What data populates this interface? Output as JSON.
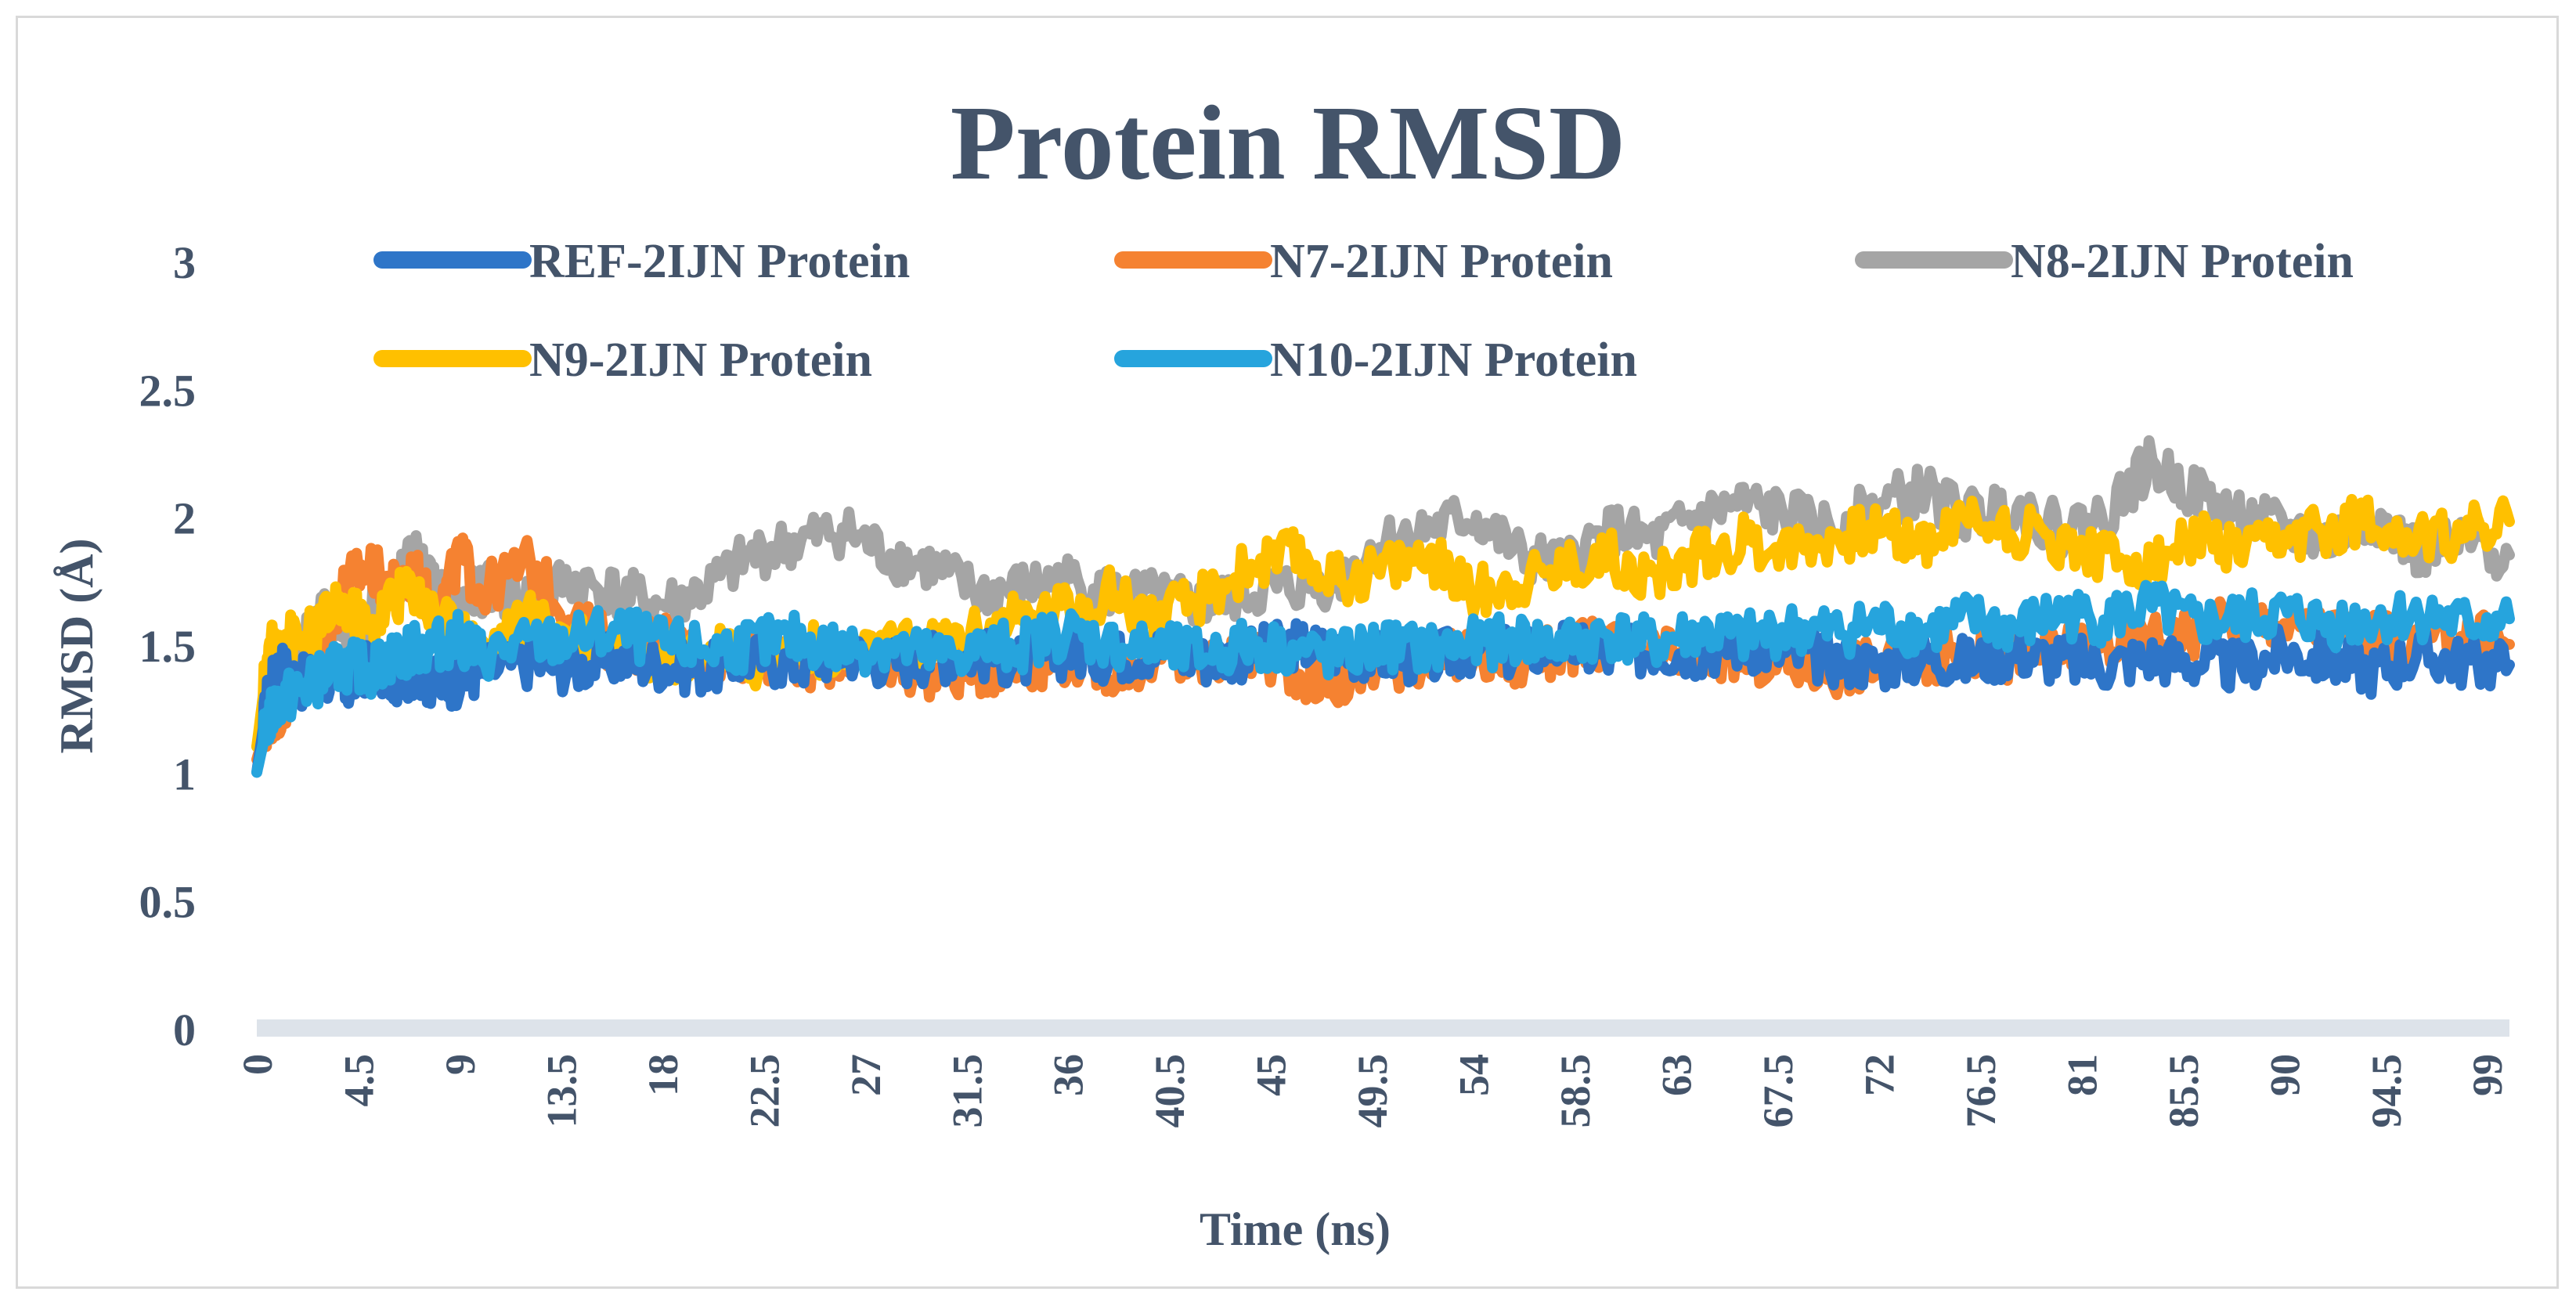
{
  "chart_data": {
    "type": "line",
    "title": "Protein RMSD",
    "xlabel": "Time (ns)",
    "ylabel": "RMSD (Å)",
    "ylim": [
      0,
      3
    ],
    "xlim": [
      0,
      100
    ],
    "y_ticks": [
      "0",
      "0.5",
      "1",
      "1.5",
      "2",
      "2.5",
      "3"
    ],
    "x_ticks": [
      "0",
      "4.5",
      "9",
      "13.5",
      "18",
      "22.5",
      "27",
      "31.5",
      "36",
      "40.5",
      "45",
      "49.5",
      "54",
      "58.5",
      "63",
      "67.5",
      "72",
      "76.5",
      "81",
      "85.5",
      "90",
      "94.5",
      "99"
    ],
    "legend_position": "top",
    "series": [
      {
        "name": "REF-2IJN Protein",
        "color": "#2e75c8",
        "x": [
          0,
          0.5,
          1,
          2,
          3,
          4,
          5,
          6,
          7,
          8,
          9,
          10,
          12,
          14,
          16,
          18,
          20,
          22,
          24,
          26,
          28,
          30,
          32,
          34,
          36,
          38,
          40,
          42,
          44,
          46,
          48,
          50,
          52,
          54,
          56,
          58,
          60,
          62,
          64,
          66,
          68,
          70,
          72,
          74,
          76,
          78,
          80,
          82,
          84,
          86,
          88,
          90,
          92,
          94,
          96,
          98,
          100
        ],
        "values": [
          1.0,
          1.3,
          1.42,
          1.35,
          1.38,
          1.33,
          1.42,
          1.36,
          1.4,
          1.34,
          1.36,
          1.4,
          1.43,
          1.41,
          1.44,
          1.42,
          1.4,
          1.45,
          1.42,
          1.47,
          1.43,
          1.45,
          1.46,
          1.43,
          1.47,
          1.45,
          1.48,
          1.44,
          1.46,
          1.5,
          1.47,
          1.45,
          1.44,
          1.48,
          1.46,
          1.5,
          1.45,
          1.48,
          1.47,
          1.5,
          1.46,
          1.44,
          1.42,
          1.45,
          1.43,
          1.47,
          1.44,
          1.42,
          1.45,
          1.43,
          1.41,
          1.47,
          1.44,
          1.4,
          1.46,
          1.43,
          1.42
        ]
      },
      {
        "name": "N7-2IJN Protein",
        "color": "#f58231",
        "x": [
          0,
          0.5,
          1,
          2,
          3,
          4,
          5,
          6,
          7,
          8,
          9,
          10,
          12,
          14,
          16,
          18,
          20,
          22,
          24,
          26,
          28,
          30,
          32,
          34,
          36,
          38,
          40,
          42,
          44,
          46,
          48,
          50,
          52,
          54,
          56,
          58,
          60,
          62,
          64,
          66,
          68,
          70,
          72,
          74,
          76,
          78,
          80,
          82,
          84,
          86,
          88,
          90,
          92,
          94,
          96,
          98,
          100
        ],
        "values": [
          1.05,
          1.2,
          1.25,
          1.35,
          1.5,
          1.75,
          1.8,
          1.72,
          1.78,
          1.6,
          1.85,
          1.7,
          1.82,
          1.6,
          1.48,
          1.52,
          1.44,
          1.47,
          1.4,
          1.45,
          1.43,
          1.38,
          1.4,
          1.42,
          1.45,
          1.4,
          1.44,
          1.42,
          1.46,
          1.4,
          1.34,
          1.42,
          1.44,
          1.46,
          1.42,
          1.48,
          1.5,
          1.45,
          1.47,
          1.44,
          1.42,
          1.4,
          1.43,
          1.45,
          1.47,
          1.44,
          1.48,
          1.5,
          1.52,
          1.55,
          1.6,
          1.58,
          1.55,
          1.52,
          1.5,
          1.54,
          1.5
        ]
      },
      {
        "name": "N8-2IJN Protein",
        "color": "#a5a5a5",
        "x": [
          0,
          0.5,
          1,
          2,
          3,
          4,
          5,
          6,
          7,
          8,
          9,
          10,
          12,
          14,
          16,
          18,
          20,
          22,
          24,
          26,
          28,
          30,
          32,
          34,
          36,
          38,
          40,
          42,
          44,
          46,
          48,
          50,
          52,
          54,
          56,
          58,
          60,
          62,
          64,
          66,
          68,
          70,
          72,
          74,
          76,
          78,
          80,
          82,
          84,
          86,
          88,
          90,
          92,
          94,
          96,
          98,
          100
        ],
        "values": [
          1.1,
          1.35,
          1.45,
          1.5,
          1.6,
          1.55,
          1.62,
          1.7,
          1.85,
          1.7,
          1.65,
          1.72,
          1.68,
          1.75,
          1.7,
          1.65,
          1.72,
          1.85,
          1.9,
          1.95,
          1.85,
          1.8,
          1.7,
          1.72,
          1.75,
          1.7,
          1.68,
          1.65,
          1.7,
          1.72,
          1.75,
          1.9,
          1.95,
          2.0,
          1.85,
          1.8,
          1.95,
          1.9,
          2.0,
          2.05,
          2.0,
          1.95,
          2.05,
          2.1,
          2.0,
          2.05,
          1.95,
          2.0,
          2.2,
          2.1,
          2.0,
          1.95,
          1.9,
          2.0,
          1.85,
          1.9,
          1.85
        ]
      },
      {
        "name": "N9-2IJN Protein",
        "color": "#ffc000",
        "x": [
          0,
          0.5,
          1,
          2,
          3,
          4,
          5,
          6,
          7,
          8,
          9,
          10,
          12,
          14,
          16,
          18,
          20,
          22,
          24,
          26,
          28,
          30,
          32,
          34,
          36,
          38,
          40,
          42,
          44,
          46,
          48,
          50,
          52,
          54,
          56,
          58,
          60,
          62,
          64,
          66,
          68,
          70,
          72,
          74,
          76,
          78,
          80,
          82,
          84,
          86,
          88,
          90,
          92,
          94,
          96,
          98,
          100
        ],
        "values": [
          1.1,
          1.45,
          1.55,
          1.5,
          1.6,
          1.65,
          1.55,
          1.68,
          1.72,
          1.6,
          1.55,
          1.48,
          1.6,
          1.55,
          1.5,
          1.45,
          1.48,
          1.42,
          1.5,
          1.45,
          1.48,
          1.5,
          1.55,
          1.6,
          1.65,
          1.7,
          1.6,
          1.68,
          1.8,
          1.85,
          1.75,
          1.8,
          1.85,
          1.7,
          1.75,
          1.8,
          1.85,
          1.75,
          1.85,
          1.9,
          1.88,
          1.92,
          1.95,
          1.9,
          2.0,
          1.95,
          1.9,
          1.85,
          1.8,
          1.92,
          1.85,
          1.9,
          1.95,
          2.0,
          1.9,
          1.95,
          1.98
        ]
      },
      {
        "name": "N10-2IJN Protein",
        "color": "#26a4dd",
        "x": [
          0,
          0.5,
          1,
          2,
          3,
          4,
          5,
          6,
          7,
          8,
          9,
          10,
          12,
          14,
          16,
          18,
          20,
          22,
          24,
          26,
          28,
          30,
          32,
          34,
          36,
          38,
          40,
          42,
          44,
          46,
          48,
          50,
          52,
          54,
          56,
          58,
          60,
          62,
          64,
          66,
          68,
          70,
          72,
          74,
          76,
          78,
          80,
          82,
          84,
          86,
          88,
          90,
          92,
          94,
          96,
          98,
          100
        ],
        "values": [
          1.0,
          1.2,
          1.28,
          1.32,
          1.38,
          1.42,
          1.4,
          1.45,
          1.48,
          1.5,
          1.52,
          1.46,
          1.5,
          1.52,
          1.55,
          1.5,
          1.48,
          1.5,
          1.52,
          1.48,
          1.5,
          1.45,
          1.48,
          1.5,
          1.55,
          1.5,
          1.48,
          1.46,
          1.5,
          1.48,
          1.45,
          1.5,
          1.48,
          1.5,
          1.52,
          1.5,
          1.54,
          1.5,
          1.55,
          1.52,
          1.56,
          1.55,
          1.58,
          1.55,
          1.6,
          1.56,
          1.62,
          1.6,
          1.65,
          1.58,
          1.6,
          1.62,
          1.58,
          1.6,
          1.62,
          1.58,
          1.6
        ]
      }
    ]
  }
}
